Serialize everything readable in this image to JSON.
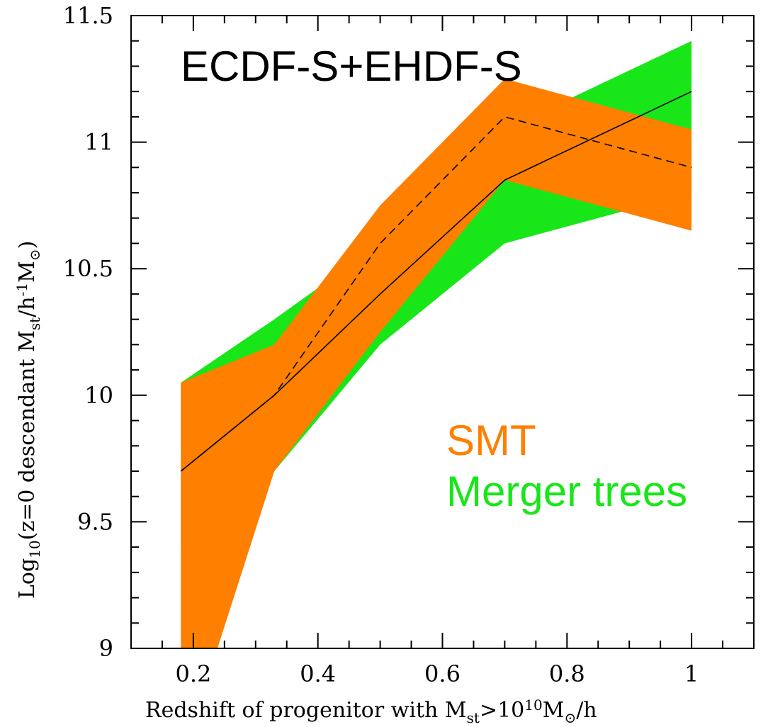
{
  "chart_data": {
    "type": "area",
    "title": "ECDF-S+EHDF-S",
    "xlabel": {
      "main": "Redshift of progenitor with M",
      "sub": "st",
      "rest1": ">10",
      "sup": "10",
      "rest2": "M",
      "sub2": "⊙",
      "rest3": "/h"
    },
    "ylabel": {
      "pre": "Log",
      "sub1": "10",
      "mid": "(z=0 descendant M",
      "sub2": "st",
      "post": "/h",
      "sup": "-1",
      "post2": "M",
      "sub3": "⊙",
      "end": ")"
    },
    "xlim": [
      0.1,
      1.1
    ],
    "ylim": [
      9.0,
      11.5
    ],
    "x_ticks": [
      0.2,
      0.4,
      0.6,
      0.8,
      1.0
    ],
    "x_tick_labels": [
      "0.2",
      "0.4",
      "0.6",
      "0.8",
      "1"
    ],
    "y_ticks": [
      9.0,
      9.5,
      10.0,
      10.5,
      11.0,
      11.5
    ],
    "y_tick_labels": [
      "9",
      "9.5",
      "10",
      "10.5",
      "11",
      "11.5"
    ],
    "series": [
      {
        "name": "Merger trees",
        "color": "#19e619",
        "x": [
          0.18,
          0.33,
          0.5,
          0.7,
          1.0
        ],
        "upper": [
          10.05,
          10.3,
          10.6,
          11.05,
          11.4
        ],
        "lower": [
          9.4,
          9.7,
          10.2,
          10.6,
          10.8
        ],
        "median": [
          9.7,
          10.0,
          10.4,
          10.85,
          11.2
        ],
        "median_style": "solid"
      },
      {
        "name": "SMT",
        "color": "#ff7f00",
        "x": [
          0.18,
          0.33,
          0.5,
          0.7,
          1.0
        ],
        "upper": [
          10.05,
          10.2,
          10.75,
          11.25,
          11.05
        ],
        "lower": [
          8.55,
          9.7,
          10.25,
          10.85,
          10.65
        ],
        "median": [
          9.7,
          10.0,
          10.6,
          11.1,
          10.9
        ],
        "median_style": "dashed"
      }
    ],
    "annotations": [
      "SMT",
      "Merger trees"
    ]
  }
}
